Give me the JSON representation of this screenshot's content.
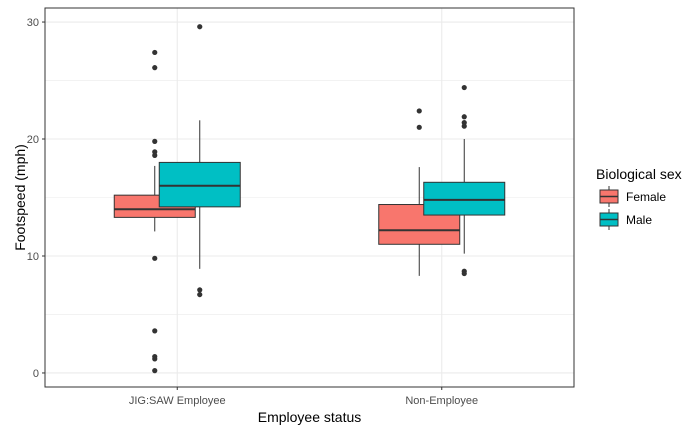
{
  "chart_data": {
    "type": "boxplot",
    "xlabel": "Employee status",
    "ylabel": "Footspeed (mph)",
    "categories": [
      "JIG:SAW Employee",
      "Non-Employee"
    ],
    "ylim": [
      -1.2,
      31.2
    ],
    "yticks": [
      0,
      10,
      20,
      30
    ],
    "grid": true,
    "legend": {
      "title": "Biological sex",
      "position": "right"
    },
    "series": [
      {
        "name": "Female",
        "color": "#F8766D",
        "boxes": [
          {
            "category": "JIG:SAW Employee",
            "whisker_low": 12.1,
            "q1": 13.3,
            "median": 14.0,
            "q3": 15.2,
            "whisker_high": 17.7,
            "outliers": [
              27.4,
              26.1,
              19.8,
              18.9,
              18.6,
              9.8,
              3.6,
              1.4,
              1.2,
              0.2
            ]
          },
          {
            "category": "Non-Employee",
            "whisker_low": 8.3,
            "q1": 11.0,
            "median": 12.2,
            "q3": 14.4,
            "whisker_high": 17.6,
            "outliers": [
              22.4,
              21.0
            ]
          }
        ]
      },
      {
        "name": "Male",
        "color": "#00BFC4",
        "boxes": [
          {
            "category": "JIG:SAW Employee",
            "whisker_low": 8.9,
            "q1": 14.2,
            "median": 16.0,
            "q3": 18.0,
            "whisker_high": 21.6,
            "outliers": [
              29.6,
              7.1,
              6.7
            ]
          },
          {
            "category": "Non-Employee",
            "whisker_low": 10.2,
            "q1": 13.5,
            "median": 14.8,
            "q3": 16.3,
            "whisker_high": 20.0,
            "outliers": [
              24.4,
              21.9,
              21.4,
              21.1,
              8.7,
              8.5
            ]
          }
        ]
      }
    ]
  }
}
